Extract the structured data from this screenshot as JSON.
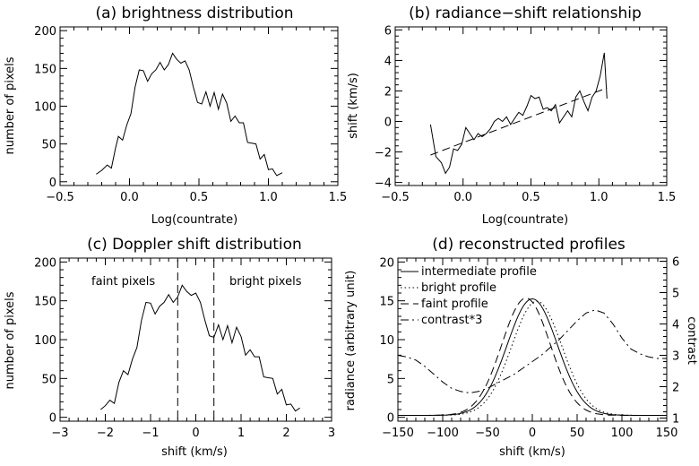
{
  "chart_data": [
    {
      "type": "line",
      "title": "(a) brightness distribution",
      "xlabel": "Log(countrate)",
      "ylabel": "number of pixels",
      "xlim": [
        -0.5,
        1.5
      ],
      "ylim": [
        -5,
        205
      ],
      "xticks": [
        -0.5,
        0.0,
        0.5,
        1.0,
        1.5
      ],
      "xtick_labels": [
        "−0.5",
        "0.0",
        "0.5",
        "1.0",
        "1.5"
      ],
      "yticks": [
        0,
        50,
        100,
        150,
        200
      ],
      "ytick_labels": [
        "0",
        "50",
        "100",
        "150",
        "200"
      ],
      "series": [
        {
          "style": "solid",
          "x": [
            -0.24,
            -0.2,
            -0.16,
            -0.13,
            -0.1,
            -0.08,
            -0.05,
            -0.02,
            0.01,
            0.04,
            0.07,
            0.1,
            0.13,
            0.16,
            0.19,
            0.22,
            0.25,
            0.28,
            0.31,
            0.34,
            0.37,
            0.4,
            0.43,
            0.46,
            0.49,
            0.52,
            0.55,
            0.58,
            0.61,
            0.64,
            0.67,
            0.7,
            0.73,
            0.76,
            0.79,
            0.82,
            0.85,
            0.88,
            0.91,
            0.94,
            0.97,
            1.0,
            1.03,
            1.06,
            1.1
          ],
          "y": [
            10,
            15,
            22,
            18,
            45,
            60,
            55,
            75,
            90,
            125,
            148,
            147,
            133,
            143,
            148,
            158,
            148,
            155,
            170,
            162,
            157,
            160,
            148,
            125,
            105,
            103,
            119,
            100,
            118,
            96,
            116,
            104,
            80,
            87,
            78,
            78,
            52,
            51,
            50,
            30,
            36,
            16,
            17,
            8,
            12
          ]
        }
      ]
    },
    {
      "type": "line",
      "title": "(b) radiance−shift relationship",
      "xlabel": "Log(countrate)",
      "ylabel": "shift (km/s)",
      "xlim": [
        -0.5,
        1.5
      ],
      "ylim": [
        -4.2,
        6.2
      ],
      "xticks": [
        -0.5,
        0.0,
        0.5,
        1.0,
        1.5
      ],
      "xtick_labels": [
        "−0.5",
        "0.0",
        "0.5",
        "1.0",
        "1.5"
      ],
      "yticks": [
        -4,
        -2,
        0,
        2,
        4,
        6
      ],
      "ytick_labels": [
        "−4",
        "−2",
        "0",
        "2",
        "4",
        "6"
      ],
      "series": [
        {
          "style": "solid",
          "x": [
            -0.24,
            -0.2,
            -0.16,
            -0.13,
            -0.1,
            -0.07,
            -0.04,
            -0.01,
            0.02,
            0.05,
            0.08,
            0.11,
            0.14,
            0.17,
            0.2,
            0.23,
            0.26,
            0.29,
            0.32,
            0.35,
            0.38,
            0.41,
            0.44,
            0.47,
            0.5,
            0.53,
            0.56,
            0.59,
            0.62,
            0.65,
            0.68,
            0.71,
            0.74,
            0.77,
            0.8,
            0.83,
            0.86,
            0.89,
            0.92,
            0.95,
            0.98,
            1.01,
            1.04,
            1.06
          ],
          "y": [
            -0.2,
            -2.3,
            -2.7,
            -3.4,
            -3.0,
            -1.8,
            -1.9,
            -1.5,
            -0.4,
            -0.8,
            -1.2,
            -0.8,
            -1.0,
            -0.8,
            -0.5,
            0.0,
            0.2,
            0.0,
            0.3,
            -0.2,
            0.2,
            0.6,
            0.4,
            1.0,
            1.7,
            1.5,
            1.6,
            0.8,
            0.9,
            0.7,
            1.1,
            -0.1,
            0.3,
            0.7,
            0.3,
            1.6,
            2.0,
            1.3,
            0.7,
            1.6,
            2.0,
            3.0,
            4.5,
            1.5
          ]
        },
        {
          "style": "dashed",
          "x": [
            -0.24,
            1.06
          ],
          "y": [
            -2.2,
            2.2
          ]
        }
      ]
    },
    {
      "type": "line",
      "title": "(c) Doppler shift distribution",
      "xlabel": "shift (km/s)",
      "ylabel": "number of pixels",
      "xlim": [
        -3,
        3
      ],
      "ylim": [
        -5,
        205
      ],
      "xticks": [
        -3,
        -2,
        -1,
        0,
        1,
        2,
        3
      ],
      "xtick_labels": [
        "−3",
        "−2",
        "−1",
        "0",
        "1",
        "2",
        "3"
      ],
      "yticks": [
        0,
        50,
        100,
        150,
        200
      ],
      "ytick_labels": [
        "0",
        "50",
        "100",
        "150",
        "200"
      ],
      "annotations": [
        "faint pixels",
        "bright pixels"
      ],
      "vlines": [
        -0.4,
        0.4
      ],
      "series": [
        {
          "style": "solid",
          "x": [
            -2.1,
            -2.0,
            -1.9,
            -1.8,
            -1.7,
            -1.6,
            -1.5,
            -1.4,
            -1.3,
            -1.2,
            -1.1,
            -1.0,
            -0.9,
            -0.8,
            -0.7,
            -0.6,
            -0.5,
            -0.4,
            -0.3,
            -0.2,
            -0.1,
            0.0,
            0.1,
            0.2,
            0.3,
            0.4,
            0.5,
            0.6,
            0.7,
            0.8,
            0.9,
            1.0,
            1.1,
            1.2,
            1.3,
            1.4,
            1.5,
            1.6,
            1.7,
            1.8,
            1.9,
            2.0,
            2.1,
            2.2,
            2.3
          ],
          "y": [
            10,
            15,
            22,
            18,
            45,
            60,
            55,
            75,
            90,
            125,
            148,
            147,
            133,
            143,
            148,
            158,
            148,
            155,
            170,
            162,
            157,
            160,
            148,
            125,
            105,
            103,
            119,
            100,
            118,
            96,
            116,
            104,
            80,
            87,
            78,
            78,
            52,
            51,
            50,
            30,
            36,
            16,
            17,
            8,
            12
          ]
        }
      ]
    },
    {
      "type": "line",
      "title": "(d) reconstructed profiles",
      "xlabel": "shift (km/s)",
      "ylabel": "radiance (arbitrary unit)",
      "ylabel_right": "contrast",
      "xlim": [
        -150,
        150
      ],
      "ylim": [
        -0.5,
        20.5
      ],
      "ylim_right": [
        0.9,
        6.1
      ],
      "xticks": [
        -150,
        -100,
        -50,
        0,
        50,
        100,
        150
      ],
      "xtick_labels": [
        "−150",
        "−100",
        "−50",
        "0",
        "50",
        "100",
        "150"
      ],
      "yticks": [
        0,
        5,
        10,
        15,
        20
      ],
      "ytick_labels": [
        "0",
        "5",
        "10",
        "15",
        "20"
      ],
      "yticks_right": [
        1,
        2,
        3,
        4,
        5,
        6
      ],
      "ytick_labels_right": [
        "1",
        "2",
        "3",
        "4",
        "5",
        "6"
      ],
      "series": [
        {
          "name": "intermediate profile",
          "style": "solid",
          "profile": "gaussian",
          "center": 0,
          "width": 28,
          "amplitude": 15,
          "baseline": 0.25
        },
        {
          "name": "bright profile",
          "style": "dotted",
          "profile": "gaussian",
          "center": 5,
          "width": 28,
          "amplitude": 14.7,
          "baseline": 0.25
        },
        {
          "name": "faint profile",
          "style": "dashed",
          "profile": "gaussian",
          "center": -7,
          "width": 27,
          "amplitude": 15.1,
          "baseline": 0.25
        },
        {
          "name": "contrast*3",
          "style": "dashdot",
          "axis": "right",
          "x": [
            -150,
            -140,
            -130,
            -120,
            -110,
            -100,
            -90,
            -80,
            -70,
            -60,
            -50,
            -40,
            -30,
            -20,
            -10,
            0,
            10,
            20,
            30,
            40,
            50,
            60,
            70,
            80,
            90,
            100,
            110,
            120,
            130,
            140,
            150
          ],
          "y": [
            3.0,
            2.95,
            2.85,
            2.65,
            2.4,
            2.15,
            1.95,
            1.85,
            1.8,
            1.85,
            1.95,
            2.1,
            2.25,
            2.4,
            2.6,
            2.8,
            3.0,
            3.25,
            3.5,
            3.8,
            4.1,
            4.35,
            4.45,
            4.35,
            4.0,
            3.55,
            3.2,
            3.05,
            2.95,
            2.9,
            2.9
          ]
        }
      ]
    }
  ]
}
